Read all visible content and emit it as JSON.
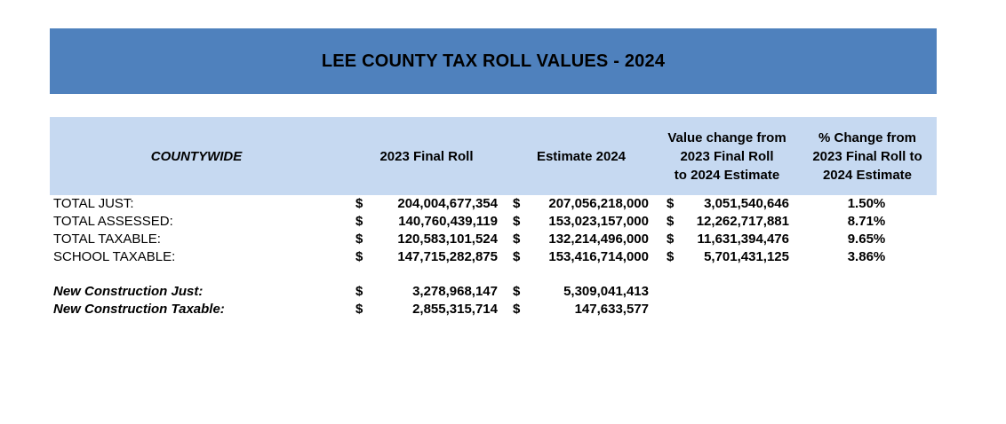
{
  "title": "LEE COUNTY TAX ROLL VALUES - 2024",
  "headers": {
    "countywide": "COUNTYWIDE",
    "final_roll": "2023 Final Roll",
    "estimate": "Estimate 2024",
    "value_change": "Value change from\n2023 Final Roll\nto 2024 Estimate",
    "pct_change": "% Change from\n2023 Final Roll to\n2024 Estimate"
  },
  "rows": [
    {
      "label": "TOTAL JUST:",
      "d1": "$",
      "final": "204,004,677,354",
      "d2": "$",
      "estimate": "207,056,218,000",
      "d3": "$",
      "change": "3,051,540,646",
      "pct": "1.50%"
    },
    {
      "label": "TOTAL ASSESSED:",
      "d1": "$",
      "final": "140,760,439,119",
      "d2": "$",
      "estimate": "153,023,157,000",
      "d3": "$",
      "change": "12,262,717,881",
      "pct": "8.71%"
    },
    {
      "label": "TOTAL TAXABLE:",
      "d1": "$",
      "final": "120,583,101,524",
      "d2": "$",
      "estimate": "132,214,496,000",
      "d3": "$",
      "change": "11,631,394,476",
      "pct": "9.65%"
    },
    {
      "label": "SCHOOL TAXABLE:",
      "d1": "$",
      "final": "147,715,282,875",
      "d2": "$",
      "estimate": "153,416,714,000",
      "d3": "$",
      "change": "5,701,431,125",
      "pct": "3.86%"
    }
  ],
  "new_construction": [
    {
      "label": "New Construction Just:",
      "d1": "$",
      "final": "3,278,968,147",
      "d2": "$",
      "estimate": "5,309,041,413"
    },
    {
      "label": "New Construction Taxable:",
      "d1": "$",
      "final": "2,855,315,714",
      "d2": "$",
      "estimate": "147,633,577"
    }
  ],
  "colors": {
    "title_banner": "#4f81bd",
    "header_band": "#c6d9f1"
  }
}
